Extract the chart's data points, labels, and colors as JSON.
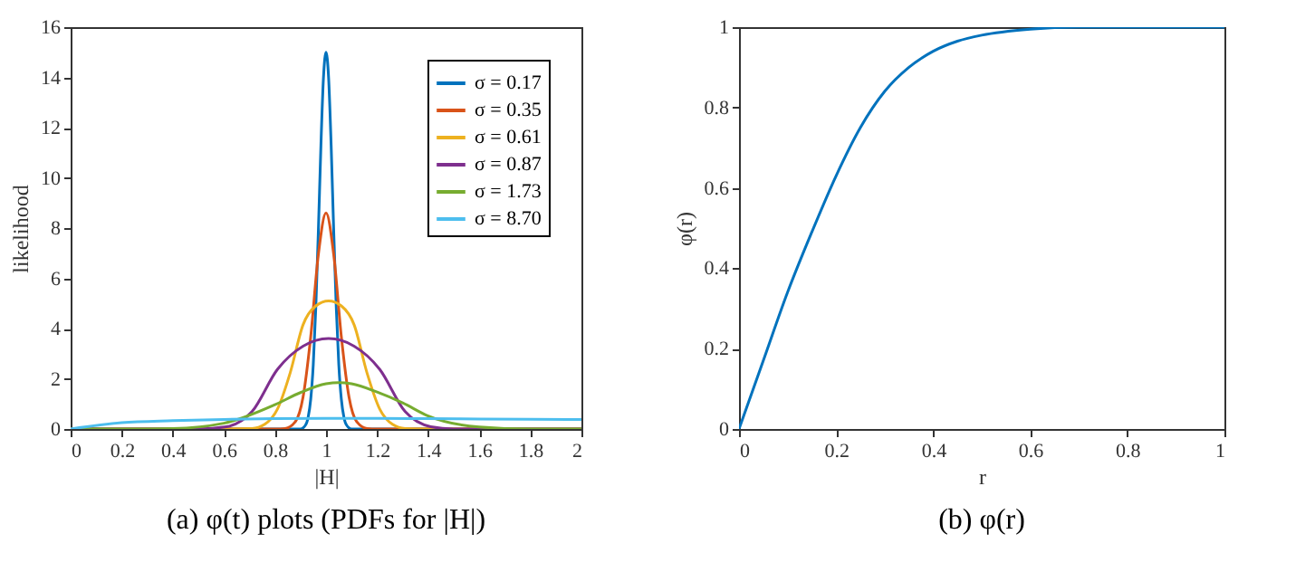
{
  "chart_data": [
    {
      "type": "line",
      "title": "(a) φ(t) plots (PDFs for |H|)",
      "xlabel": "|H|",
      "ylabel": "likelihood",
      "xlim": [
        0,
        2
      ],
      "ylim": [
        0,
        16
      ],
      "xticks": [
        0,
        0.2,
        0.4,
        0.6,
        0.8,
        1,
        1.2,
        1.4,
        1.6,
        1.8,
        2
      ],
      "yticks": [
        0,
        2,
        4,
        6,
        8,
        10,
        12,
        14,
        16
      ],
      "grid": false,
      "legend": "top right",
      "series": [
        {
          "name": "σ = 0.17",
          "color": "#0072bd",
          "x": [
            0,
            0.85,
            0.9,
            0.92,
            0.93,
            0.94,
            0.95,
            0.96,
            0.97,
            0.98,
            0.99,
            1,
            1.01,
            1.02,
            1.03,
            1.04,
            1.05,
            1.06,
            1.07,
            1.08,
            1.1,
            1.15,
            2
          ],
          "values": [
            0,
            0,
            0,
            0.16,
            0.47,
            1.18,
            2.56,
            4.85,
            7.9,
            11.3,
            14,
            15,
            14,
            11.3,
            7.9,
            4.85,
            2.56,
            1.18,
            0.47,
            0.16,
            0,
            0,
            0
          ]
        },
        {
          "name": "σ = 0.35",
          "color": "#d95319",
          "x": [
            0,
            0.8,
            0.84,
            0.88,
            0.91,
            0.94,
            0.97,
            1,
            1.03,
            1.06,
            1.09,
            1.12,
            1.16,
            1.2,
            2
          ],
          "values": [
            0,
            0,
            0.02,
            0.29,
            1.27,
            3.67,
            6.95,
            8.6,
            6.95,
            3.67,
            1.27,
            0.29,
            0.02,
            0,
            0
          ]
        },
        {
          "name": "σ = 0.61",
          "color": "#edb120",
          "x": [
            0,
            0.6,
            0.71,
            0.76,
            0.81,
            0.86,
            0.91,
            0.96,
            1.01,
            1.06,
            1.11,
            1.16,
            1.21,
            1.26,
            1.31,
            1.4,
            2
          ],
          "values": [
            0,
            0,
            0.02,
            0.19,
            0.8,
            2.25,
            4.15,
            4.9,
            5.1,
            4.9,
            4.15,
            2.25,
            0.8,
            0.19,
            0.02,
            0,
            0
          ]
        },
        {
          "name": "σ = 0.87",
          "color": "#7e2f8e",
          "x": [
            0,
            0.5,
            0.61,
            0.71,
            0.81,
            0.91,
            1.01,
            1.11,
            1.21,
            1.31,
            1.41,
            1.5,
            2
          ],
          "values": [
            0,
            0,
            0.09,
            0.69,
            2.38,
            3.3,
            3.6,
            3.3,
            2.38,
            0.69,
            0.09,
            0,
            0
          ]
        },
        {
          "name": "σ = 1.73",
          "color": "#77ac30",
          "x": [
            0,
            0.2,
            0.4,
            0.6,
            0.8,
            0.9,
            1,
            1.05,
            1.1,
            1.2,
            1.3,
            1.4,
            1.6,
            1.8,
            2
          ],
          "values": [
            0,
            0,
            0.02,
            0.23,
            0.97,
            1.45,
            1.8,
            1.85,
            1.8,
            1.47,
            1.04,
            0.52,
            0.08,
            0,
            0
          ]
        },
        {
          "name": "σ = 8.70",
          "color": "#4dbeee",
          "x": [
            0,
            0.2,
            0.4,
            0.6,
            0.8,
            1,
            1.2,
            1.4,
            1.6,
            1.8,
            2
          ],
          "values": [
            0,
            0.25,
            0.33,
            0.38,
            0.41,
            0.42,
            0.42,
            0.41,
            0.4,
            0.39,
            0.38
          ]
        }
      ]
    },
    {
      "type": "line",
      "title": "(b) φ(r)",
      "xlabel": "r",
      "ylabel": "φ(r)",
      "xlim": [
        0,
        1
      ],
      "ylim": [
        0,
        1
      ],
      "xticks": [
        0,
        0.2,
        0.4,
        0.6,
        0.8,
        1
      ],
      "yticks": [
        0,
        0.2,
        0.4,
        0.6,
        0.8,
        1
      ],
      "grid": false,
      "series": [
        {
          "color": "#0072bd",
          "x": [
            0,
            0.05,
            0.1,
            0.15,
            0.2,
            0.25,
            0.3,
            0.35,
            0.4,
            0.45,
            0.5,
            0.6,
            0.7,
            0.8,
            1
          ],
          "values": [
            0,
            0.17,
            0.34,
            0.49,
            0.63,
            0.75,
            0.84,
            0.9,
            0.94,
            0.965,
            0.98,
            0.995,
            1,
            1,
            1
          ]
        }
      ]
    }
  ]
}
